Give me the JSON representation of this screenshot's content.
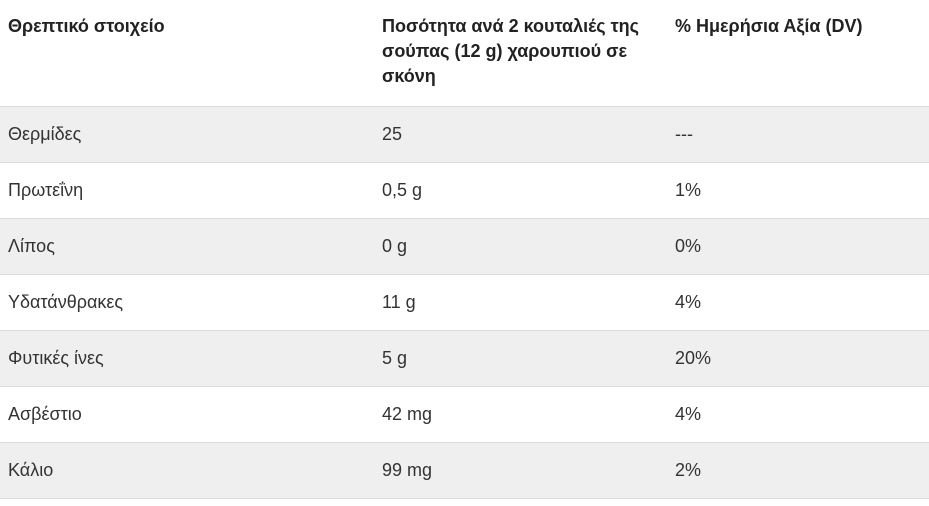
{
  "table": {
    "headers": [
      "Θρεπτικό στοιχείο",
      "Ποσότητα ανά 2 κουταλιές της σούπας (12 g) χαρουπιού σε σκόνη",
      "% Ημερήσια Αξία (DV)"
    ],
    "rows": [
      [
        "Θερμίδες",
        "25",
        "---"
      ],
      [
        "Πρωτεΐνη",
        "0,5 g",
        "1%"
      ],
      [
        "Λίπος",
        "0 g",
        "0%"
      ],
      [
        "Υδατάνθρακες",
        "11 g",
        "4%"
      ],
      [
        "Φυτικές ίνες",
        "5 g",
        "20%"
      ],
      [
        "Ασβέστιο",
        "42 mg",
        "4%"
      ],
      [
        "Κάλιο",
        "99 mg",
        "2%"
      ]
    ]
  },
  "colors": {
    "shaded_row": "#efefef",
    "border": "#dcdcdc",
    "text": "#222222"
  }
}
